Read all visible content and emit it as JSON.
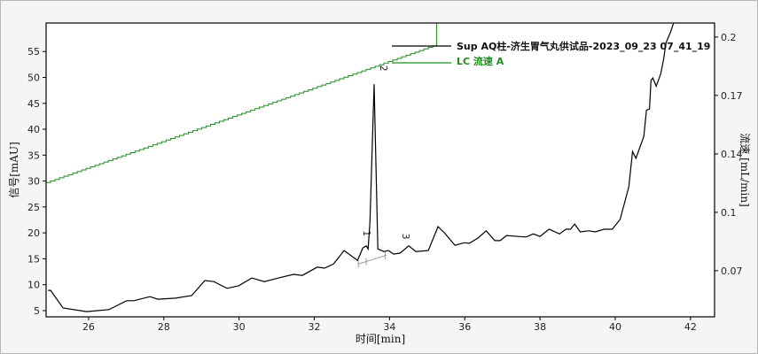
{
  "chart_data": {
    "type": "line",
    "xlabel": "时间[min]",
    "ylabel": "信号[mAU]",
    "y2label": "流速 [mL/min]",
    "xlim": [
      24.87,
      42.64
    ],
    "ylim": [
      3.8,
      60.5
    ],
    "y2lim": [
      0.0404,
      0.208
    ],
    "xticks": [
      26,
      28,
      30,
      32,
      34,
      36,
      38,
      40,
      42
    ],
    "yticks": [
      5,
      10,
      15,
      20,
      25,
      30,
      35,
      40,
      45,
      50,
      55
    ],
    "y2ticks": {
      "values": [
        0.2,
        0.1667,
        0.1333,
        0.1,
        0.0667
      ],
      "labels": [
        "0.2",
        "0.17",
        "0.14",
        "0.1",
        "0.07"
      ]
    },
    "grid": false,
    "legend_position": "top-right",
    "series": [
      {
        "name": "Sup AQ柱-济生胃气丸供试品-2023_09_23 07_41_19",
        "axis": "left",
        "color": "#000000",
        "points": [
          [
            24.92,
            8.9
          ],
          [
            24.99,
            8.9
          ],
          [
            25.32,
            5.5
          ],
          [
            25.95,
            4.8
          ],
          [
            26.54,
            5.2
          ],
          [
            27.01,
            6.9
          ],
          [
            27.2,
            6.9
          ],
          [
            27.63,
            7.7
          ],
          [
            27.84,
            7.2
          ],
          [
            28.31,
            7.4
          ],
          [
            28.74,
            7.9
          ],
          [
            29.09,
            10.8
          ],
          [
            29.33,
            10.6
          ],
          [
            29.68,
            9.3
          ],
          [
            29.99,
            9.8
          ],
          [
            30.34,
            11.3
          ],
          [
            30.67,
            10.6
          ],
          [
            31.05,
            11.3
          ],
          [
            31.45,
            12.0
          ],
          [
            31.68,
            11.8
          ],
          [
            32.08,
            13.4
          ],
          [
            32.27,
            13.2
          ],
          [
            32.51,
            14.0
          ],
          [
            32.79,
            16.6
          ],
          [
            33.15,
            14.7
          ],
          [
            33.29,
            17.1
          ],
          [
            33.38,
            17.5
          ],
          [
            33.43,
            16.9
          ],
          [
            33.48,
            22.1
          ],
          [
            33.59,
            48.7
          ],
          [
            33.69,
            16.9
          ],
          [
            33.85,
            16.4
          ],
          [
            33.97,
            16.6
          ],
          [
            34.11,
            15.9
          ],
          [
            34.28,
            16.1
          ],
          [
            34.51,
            17.5
          ],
          [
            34.7,
            16.4
          ],
          [
            35.03,
            16.6
          ],
          [
            35.29,
            21.2
          ],
          [
            35.46,
            20.0
          ],
          [
            35.74,
            17.6
          ],
          [
            35.98,
            18.1
          ],
          [
            36.12,
            18.0
          ],
          [
            36.35,
            19.0
          ],
          [
            36.57,
            20.4
          ],
          [
            36.8,
            18.5
          ],
          [
            36.94,
            18.5
          ],
          [
            37.11,
            19.5
          ],
          [
            37.42,
            19.3
          ],
          [
            37.63,
            19.2
          ],
          [
            37.82,
            19.8
          ],
          [
            38.0,
            19.3
          ],
          [
            38.24,
            20.7
          ],
          [
            38.52,
            19.8
          ],
          [
            38.69,
            20.7
          ],
          [
            38.81,
            20.7
          ],
          [
            38.92,
            21.7
          ],
          [
            39.07,
            20.2
          ],
          [
            39.3,
            20.4
          ],
          [
            39.47,
            20.2
          ],
          [
            39.7,
            20.7
          ],
          [
            39.92,
            20.7
          ],
          [
            40.13,
            22.6
          ],
          [
            40.36,
            28.9
          ],
          [
            40.46,
            35.7
          ],
          [
            40.55,
            34.4
          ],
          [
            40.76,
            38.6
          ],
          [
            40.83,
            43.7
          ],
          [
            40.91,
            43.9
          ],
          [
            40.95,
            49.4
          ],
          [
            41.0,
            49.9
          ],
          [
            41.09,
            48.3
          ],
          [
            41.21,
            50.7
          ],
          [
            41.28,
            53.3
          ],
          [
            41.35,
            56.7
          ],
          [
            41.47,
            58.8
          ],
          [
            41.59,
            61.3
          ]
        ]
      },
      {
        "name": "LC 流速 A",
        "axis": "right",
        "color": "#1e8c1e",
        "points": [
          [
            24.87,
            0.117
          ],
          [
            35.15,
            0.195
          ],
          [
            35.25,
            0.208
          ]
        ]
      }
    ],
    "peaks": [
      {
        "label": "1",
        "x": 33.38,
        "y": 17.5
      },
      {
        "label": "2",
        "x": 33.59,
        "y": 48.7
      },
      {
        "label": "3",
        "x": 34.11,
        "y": 15.9
      }
    ],
    "baseline": [
      [
        33.17,
        14.0
      ],
      [
        33.92,
        15.7
      ]
    ]
  }
}
